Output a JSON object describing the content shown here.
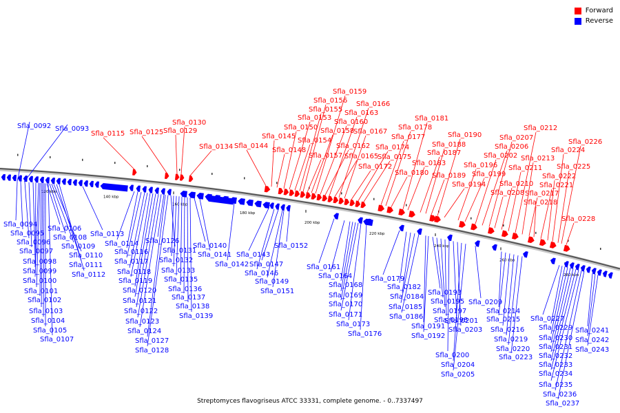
{
  "legend": [
    {
      "label": "Forward",
      "color": "#ff0000"
    },
    {
      "label": "Reverse",
      "color": "#0000ff"
    }
  ],
  "caption": "Streptomyces flavogriseus ATCC 33331, complete genome. - 0..7337497",
  "colors": {
    "forward": "#ff0000",
    "reverse": "#0000ff",
    "backbone": "#8a8a8a"
  },
  "ticks": [
    "120 kbp",
    "140 kbp",
    "160 kbp",
    "180 kbp",
    "200 kbp",
    "220 kbp",
    "240 kbp",
    "260 kbp",
    "280 kbp"
  ],
  "forward_labels": [
    "Sfla_0115",
    "Sfla_0125",
    "Sfla_0129",
    "Sfla_0130",
    "Sfla_0134",
    "Sfla_0144",
    "Sfla_0145",
    "Sfla_0148",
    "Sfla_0150",
    "Sfla_0153",
    "Sfla_0154",
    "Sfla_0155",
    "Sfla_0156",
    "Sfla_0157",
    "Sfla_0158",
    "Sfla_0159",
    "Sfla_0160",
    "Sfla_0162",
    "Sfla_0163",
    "Sfla_0165",
    "Sfla_0166",
    "Sfla_0167",
    "Sfla_0172",
    "Sfla_0174",
    "Sfla_0175",
    "Sfla_0177",
    "Sfla_0178",
    "Sfla_0180",
    "Sfla_0181",
    "Sfla_0183",
    "Sfla_0187",
    "Sfla_0188",
    "Sfla_0189",
    "Sfla_0190",
    "Sfla_0194",
    "Sfla_0196",
    "Sfla_0199",
    "Sfla_0202",
    "Sfla_0206",
    "Sfla_0207",
    "Sfla_0208",
    "Sfla_0210",
    "Sfla_0211",
    "Sfla_0212",
    "Sfla_0213",
    "Sfla_0217",
    "Sfla_0218",
    "Sfla_0221",
    "Sfla_0222",
    "Sfla_0224",
    "Sfla_0225",
    "Sfla_0226",
    "Sfla_0228"
  ],
  "reverse_labels": [
    "Sfla_0092",
    "Sfla_0093",
    "Sfla_0094",
    "Sfla_0095",
    "Sfla_0096",
    "Sfla_0097",
    "Sfla_0098",
    "Sfla_0099",
    "Sfla_0100",
    "Sfla_0101",
    "Sfla_0102",
    "Sfla_0103",
    "Sfla_0104",
    "Sfla_0105",
    "Sfla_0106",
    "Sfla_0107",
    "Sfla_0108",
    "Sfla_0109",
    "Sfla_0110",
    "Sfla_0111",
    "Sfla_0112",
    "Sfla_0113",
    "Sfla_0114",
    "Sfla_0116",
    "Sfla_0117",
    "Sfla_0118",
    "Sfla_0119",
    "Sfla_0120",
    "Sfla_0121",
    "Sfla_0122",
    "Sfla_0123",
    "Sfla_0124",
    "Sfla_0126",
    "Sfla_0127",
    "Sfla_0128",
    "Sfla_0131",
    "Sfla_0132",
    "Sfla_0133",
    "Sfla_0135",
    "Sfla_0136",
    "Sfla_0137",
    "Sfla_0138",
    "Sfla_0139",
    "Sfla_0140",
    "Sfla_0141",
    "Sfla_0142",
    "Sfla_0143",
    "Sfla_0146",
    "Sfla_0147",
    "Sfla_0149",
    "Sfla_0151",
    "Sfla_0152",
    "Sfla_0161",
    "Sfla_0164",
    "Sfla_0168",
    "Sfla_0169",
    "Sfla_0170",
    "Sfla_0171",
    "Sfla_0173",
    "Sfla_0176",
    "Sfla_0179",
    "Sfla_0182",
    "Sfla_0184",
    "Sfla_0185",
    "Sfla_0186",
    "Sfla_0191",
    "Sfla_0192",
    "Sfla_0193",
    "Sfla_0195",
    "Sfla_0197",
    "Sfla_0198",
    "Sfla_0200",
    "Sfla_0201",
    "Sfla_0203",
    "Sfla_0204",
    "Sfla_0205",
    "Sfla_0209",
    "Sfla_0214",
    "Sfla_0215",
    "Sfla_0216",
    "Sfla_0219",
    "Sfla_0220",
    "Sfla_0223",
    "Sfla_0227",
    "Sfla_0229",
    "Sfla_0230",
    "Sfla_0231",
    "Sfla_0232",
    "Sfla_0233",
    "Sfla_0234",
    "Sfla_0235",
    "Sfla_0236",
    "Sfla_0237",
    "Sfla_0241",
    "Sfla_0242",
    "Sfla_0243"
  ]
}
